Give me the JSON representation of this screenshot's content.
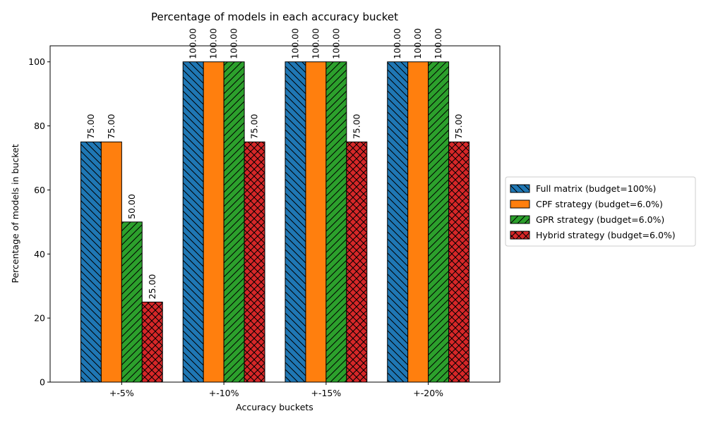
{
  "chart_data": {
    "type": "bar",
    "title": "Percentage of models in each accuracy bucket",
    "xlabel": "Accuracy buckets",
    "ylabel": "Percentage of models in bucket",
    "categories": [
      "+-5%",
      "+-10%",
      "+-15%",
      "+-20%"
    ],
    "ylim": [
      0,
      105
    ],
    "yticks": [
      0,
      20,
      40,
      60,
      80,
      100
    ],
    "grid": false,
    "legend_position": "right",
    "series": [
      {
        "name": "Full matrix (budget=100%)",
        "values": [
          75,
          100,
          100,
          100
        ],
        "labels": [
          "75.00",
          "100.00",
          "100.00",
          "100.00"
        ],
        "color": "#1f77b4",
        "hatch": "backslash"
      },
      {
        "name": "CPF strategy (budget=6.0%)",
        "values": [
          75,
          100,
          100,
          100
        ],
        "labels": [
          "75.00",
          "100.00",
          "100.00",
          "100.00"
        ],
        "color": "#ff7f0e",
        "hatch": "none"
      },
      {
        "name": "GPR strategy (budget=6.0%)",
        "values": [
          50,
          100,
          100,
          100
        ],
        "labels": [
          "50.00",
          "100.00",
          "100.00",
          "100.00"
        ],
        "color": "#2ca02c",
        "hatch": "slash"
      },
      {
        "name": "Hybrid strategy (budget=6.0%)",
        "values": [
          25,
          75,
          75,
          75
        ],
        "labels": [
          "25.00",
          "75.00",
          "75.00",
          "75.00"
        ],
        "color": "#d62728",
        "hatch": "cross"
      }
    ]
  }
}
